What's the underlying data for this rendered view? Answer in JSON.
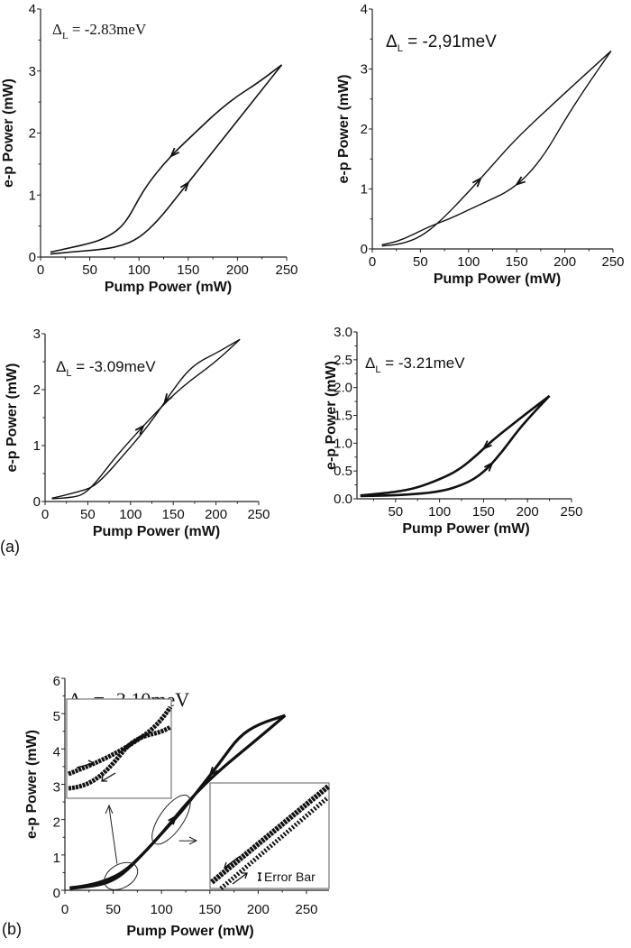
{
  "panel_labels": {
    "a": "(a)",
    "b": "(b)"
  },
  "chart_data": [
    {
      "type": "line",
      "panel": "a",
      "annotation": "ΔL = -2.83meV",
      "xlabel": "Pump Power (mW)",
      "ylabel": "e-p Power (mW)",
      "xlim": [
        0,
        250
      ],
      "ylim": [
        0,
        4
      ],
      "xticks": [
        0,
        50,
        100,
        150,
        200,
        250
      ],
      "yticks": [
        0,
        1,
        2,
        3,
        4
      ],
      "grid": false,
      "series": [
        {
          "direction": "increasing",
          "x": [
            10,
            30,
            60,
            80,
            100,
            120,
            140,
            160,
            180,
            200,
            220,
            245
          ],
          "y": [
            0.05,
            0.08,
            0.12,
            0.17,
            0.3,
            0.6,
            1.0,
            1.4,
            1.8,
            2.2,
            2.6,
            3.1
          ]
        },
        {
          "direction": "decreasing",
          "x": [
            245,
            220,
            200,
            180,
            160,
            140,
            125,
            110,
            100,
            90,
            80,
            65,
            50,
            30,
            10
          ],
          "y": [
            3.1,
            2.8,
            2.6,
            2.35,
            2.05,
            1.75,
            1.5,
            1.2,
            0.95,
            0.65,
            0.45,
            0.3,
            0.22,
            0.15,
            0.08
          ]
        }
      ]
    },
    {
      "type": "line",
      "panel": "a",
      "annotation": "ΔL = -2,91meV",
      "xlabel": "Pump Power (mW)",
      "ylabel": "e-p Power (mW)",
      "xlim": [
        0,
        250
      ],
      "ylim": [
        0,
        4
      ],
      "xticks": [
        0,
        50,
        100,
        150,
        200,
        250
      ],
      "yticks": [
        0,
        1,
        2,
        3,
        4
      ],
      "grid": false,
      "series": [
        {
          "direction": "increasing",
          "x": [
            10,
            30,
            50,
            70,
            100,
            125,
            150,
            200,
            248
          ],
          "y": [
            0.05,
            0.08,
            0.2,
            0.45,
            0.95,
            1.4,
            1.85,
            2.6,
            3.3
          ]
        },
        {
          "direction": "decreasing",
          "x": [
            248,
            220,
            200,
            180,
            160,
            140,
            120,
            100,
            80,
            60,
            40,
            25,
            10
          ],
          "y": [
            3.3,
            2.65,
            2.15,
            1.6,
            1.2,
            0.95,
            0.8,
            0.65,
            0.5,
            0.38,
            0.22,
            0.12,
            0.07
          ]
        }
      ]
    },
    {
      "type": "line",
      "panel": "a",
      "annotation": "ΔL = -3.09meV",
      "xlabel": "Pump Power (mW)",
      "ylabel": "e-p Power (mW)",
      "xlim": [
        0,
        250
      ],
      "ylim": [
        0,
        3
      ],
      "xticks": [
        0,
        50,
        100,
        150,
        200,
        250
      ],
      "yticks": [
        0,
        1,
        2,
        3
      ],
      "grid": false,
      "series": [
        {
          "direction": "increasing",
          "x": [
            8,
            30,
            45,
            60,
            80,
            100,
            130,
            160,
            200,
            228
          ],
          "y": [
            0.05,
            0.07,
            0.12,
            0.35,
            0.75,
            1.1,
            1.6,
            2.05,
            2.5,
            2.9
          ]
        },
        {
          "direction": "decreasing",
          "x": [
            228,
            200,
            180,
            165,
            150,
            130,
            110,
            90,
            70,
            55,
            40,
            20,
            8
          ],
          "y": [
            2.9,
            2.65,
            2.5,
            2.3,
            2.0,
            1.55,
            1.15,
            0.8,
            0.45,
            0.25,
            0.18,
            0.1,
            0.06
          ]
        }
      ]
    },
    {
      "type": "line",
      "panel": "a",
      "annotation": "ΔL = -3.21meV",
      "xlabel": "Pump Power (mW)",
      "ylabel": "e-p Power (mW)",
      "xlim": [
        0,
        250
      ],
      "ylim": [
        0,
        3
      ],
      "xticks": [
        50,
        100,
        150,
        200,
        250
      ],
      "yticks": [
        0.0,
        0.5,
        1.0,
        1.5,
        2.0,
        2.5,
        3.0
      ],
      "grid": false,
      "series": [
        {
          "direction": "increasing",
          "x": [
            10,
            50,
            100,
            130,
            150,
            170,
            190,
            210,
            225
          ],
          "y": [
            0.05,
            0.06,
            0.12,
            0.27,
            0.47,
            0.82,
            1.25,
            1.6,
            1.85
          ]
        },
        {
          "direction": "decreasing",
          "x": [
            225,
            200,
            180,
            160,
            140,
            120,
            100,
            75,
            50,
            10
          ],
          "y": [
            1.85,
            1.55,
            1.3,
            1.05,
            0.75,
            0.5,
            0.35,
            0.2,
            0.12,
            0.06
          ]
        }
      ]
    },
    {
      "type": "line",
      "panel": "b",
      "annotation": "ΔL = -3.10meV",
      "xlabel": "Pump Power (mW)",
      "ylabel": "e-p Power (mW)",
      "xlim": [
        0,
        270
      ],
      "ylim": [
        0,
        6
      ],
      "xticks": [
        0,
        50,
        100,
        150,
        200,
        250
      ],
      "yticks": [
        0,
        1,
        2,
        3,
        4,
        5,
        6
      ],
      "grid": false,
      "inset_annotation": "Error Bar",
      "series": [
        {
          "direction": "increasing",
          "x": [
            5,
            30,
            45,
            60,
            80,
            100,
            130,
            160,
            200,
            228
          ],
          "y": [
            0.05,
            0.12,
            0.22,
            0.45,
            1.0,
            1.6,
            2.6,
            3.4,
            4.3,
            4.95
          ]
        },
        {
          "direction": "decreasing",
          "x": [
            228,
            200,
            180,
            160,
            140,
            120,
            100,
            80,
            60,
            40,
            20,
            5
          ],
          "y": [
            4.95,
            4.7,
            4.35,
            3.6,
            2.9,
            2.2,
            1.6,
            1.0,
            0.5,
            0.25,
            0.12,
            0.07
          ]
        }
      ]
    }
  ]
}
